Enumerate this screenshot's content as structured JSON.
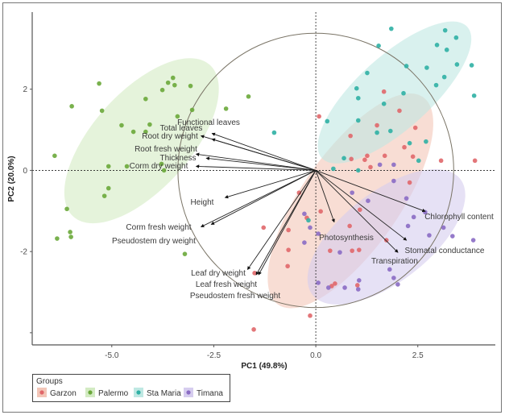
{
  "chart_data": {
    "type": "scatter",
    "subtype": "pca-biplot",
    "xlabel": "PC1 (49.8%)",
    "ylabel": "PC2 (20.0%)",
    "xlim": [
      -6.95,
      4.4
    ],
    "ylim": [
      -4.3,
      3.9
    ],
    "x_ticks": [
      {
        "value": -5.0,
        "label": "-5.0"
      },
      {
        "value": -2.5,
        "label": "-2.5"
      },
      {
        "value": 0.0,
        "label": "0.0"
      },
      {
        "value": 2.5,
        "label": "2.5"
      }
    ],
    "y_ticks": [
      {
        "value": 2,
        "label": "2"
      },
      {
        "value": 0,
        "label": "0"
      },
      {
        "value": -2,
        "label": "-2"
      },
      {
        "value": -4,
        "label": ""
      }
    ],
    "grid": false,
    "reference_lines": "dashed at x=0 and y=0",
    "correlation_circle_radius": 3.38,
    "legend": {
      "title": "Groups",
      "position": "bottom-left"
    },
    "series": [
      {
        "name": "Garzon",
        "color": "#e0676a",
        "fill": "#f3c6b8",
        "ellipse": {
          "cx": 0.85,
          "cy": -0.75,
          "rx": 3.1,
          "ry": 1.2,
          "angle": 55
        },
        "points": [
          [
            0.08,
            1.33
          ],
          [
            1.67,
            1.94
          ],
          [
            2.05,
            1.47
          ],
          [
            1.5,
            1.11
          ],
          [
            0.85,
            0.85
          ],
          [
            2.44,
            1.05
          ],
          [
            2.17,
            0.57
          ],
          [
            0.87,
            0.28
          ],
          [
            1.26,
            0.36
          ],
          [
            1.69,
            0.36
          ],
          [
            1.2,
            0.26
          ],
          [
            1.34,
            0.08
          ],
          [
            2.38,
            0.34
          ],
          [
            3.07,
            0.24
          ],
          [
            3.9,
            0.24
          ],
          [
            2.3,
            -0.3
          ],
          [
            -0.41,
            -0.55
          ],
          [
            0.12,
            -1.01
          ],
          [
            -1.28,
            -1.41
          ],
          [
            -0.67,
            -1.47
          ],
          [
            -0.22,
            -1.17
          ],
          [
            -0.67,
            -1.96
          ],
          [
            -0.69,
            -2.36
          ],
          [
            0.35,
            -1.98
          ],
          [
            0.89,
            -1.98
          ],
          [
            1.06,
            -1.96
          ],
          [
            1.73,
            -1.72
          ],
          [
            1.08,
            -0.97
          ],
          [
            0.83,
            -1.37
          ],
          [
            0.47,
            -2.79
          ],
          [
            0.39,
            -2.85
          ],
          [
            -1.5,
            -2.53
          ],
          [
            -1.52,
            -3.92
          ],
          [
            -0.14,
            -3.58
          ],
          [
            1.02,
            -2.83
          ]
        ]
      },
      {
        "name": "Palermo",
        "color": "#6aa83a",
        "fill": "#d3ebc3",
        "ellipse": {
          "cx": -4.27,
          "cy": 0.73,
          "rx": 2.5,
          "ry": 1.2,
          "angle": 48
        },
        "points": [
          [
            -5.31,
            2.14
          ],
          [
            -5.98,
            1.58
          ],
          [
            -5.24,
            1.47
          ],
          [
            -3.5,
            2.28
          ],
          [
            -3.62,
            2.16
          ],
          [
            -3.46,
            2.1
          ],
          [
            -3.76,
            1.98
          ],
          [
            -3.07,
            2.08
          ],
          [
            -4.17,
            1.76
          ],
          [
            -3.03,
            1.49
          ],
          [
            -4.76,
            1.11
          ],
          [
            -4.07,
            1.13
          ],
          [
            -4.17,
            0.95
          ],
          [
            -4.47,
            0.95
          ],
          [
            -3.39,
            1.33
          ],
          [
            -5.08,
            0.1
          ],
          [
            -4.63,
            0.1
          ],
          [
            -3.78,
            0.16
          ],
          [
            -3.72,
            0.0
          ],
          [
            -6.1,
            -0.95
          ],
          [
            -6.02,
            -1.52
          ],
          [
            -6.0,
            -1.64
          ],
          [
            -6.34,
            -1.68
          ],
          [
            -5.08,
            -0.44
          ],
          [
            -5.18,
            -0.63
          ],
          [
            -3.21,
            -2.06
          ],
          [
            -1.65,
            1.82
          ],
          [
            -2.2,
            1.52
          ],
          [
            -6.4,
            0.36
          ]
        ]
      },
      {
        "name": "Sta Maria",
        "color": "#2fb0a4",
        "fill": "#bfe8e3",
        "ellipse": {
          "cx": 1.93,
          "cy": 1.92,
          "rx": 2.4,
          "ry": 0.9,
          "angle": 42
        },
        "points": [
          [
            1.85,
            3.49
          ],
          [
            3.17,
            3.45
          ],
          [
            3.44,
            3.27
          ],
          [
            1.54,
            3.07
          ],
          [
            2.97,
            3.09
          ],
          [
            3.21,
            2.97
          ],
          [
            2.22,
            2.57
          ],
          [
            2.72,
            2.53
          ],
          [
            3.46,
            2.61
          ],
          [
            3.82,
            2.59
          ],
          [
            3.15,
            2.3
          ],
          [
            2.95,
            2.1
          ],
          [
            1.26,
            2.4
          ],
          [
            1.0,
            2.02
          ],
          [
            1.04,
            1.78
          ],
          [
            2.15,
            1.9
          ],
          [
            1.67,
            1.64
          ],
          [
            0.28,
            1.21
          ],
          [
            3.88,
            1.84
          ],
          [
            -1.02,
            0.93
          ],
          [
            1.04,
            1.23
          ],
          [
            1.5,
            0.93
          ],
          [
            1.83,
            0.97
          ],
          [
            2.3,
            0.67
          ],
          [
            2.7,
            0.71
          ],
          [
            0.69,
            0.3
          ],
          [
            2.52,
            0.24
          ],
          [
            1.04,
            0.0
          ],
          [
            0.43,
            0.04
          ],
          [
            -0.18,
            -1.23
          ]
        ]
      },
      {
        "name": "Timana",
        "color": "#8a6cc4",
        "fill": "#d6cdef",
        "ellipse": {
          "cx": 1.73,
          "cy": -1.64,
          "rx": 2.3,
          "ry": 1.1,
          "angle": 38
        },
        "points": [
          [
            1.91,
            0.14
          ],
          [
            1.57,
            0.14
          ],
          [
            1.91,
            -0.26
          ],
          [
            1.28,
            -0.75
          ],
          [
            2.22,
            -0.69
          ],
          [
            2.4,
            -1.15
          ],
          [
            2.26,
            -1.37
          ],
          [
            2.68,
            -1.03
          ],
          [
            3.13,
            -1.41
          ],
          [
            2.78,
            -1.6
          ],
          [
            3.35,
            -1.62
          ],
          [
            3.86,
            -1.72
          ],
          [
            0.59,
            -2.02
          ],
          [
            -0.28,
            -1.07
          ],
          [
            -0.14,
            -1.41
          ],
          [
            -0.28,
            -1.78
          ],
          [
            1.81,
            -2.44
          ],
          [
            1.91,
            -2.65
          ],
          [
            2.01,
            -2.81
          ],
          [
            0.31,
            -2.89
          ],
          [
            0.71,
            -2.89
          ],
          [
            1.04,
            -2.93
          ],
          [
            1.06,
            -2.71
          ],
          [
            0.06,
            -2.77
          ],
          [
            0.89,
            -0.55
          ],
          [
            0.06,
            -1.56
          ]
        ]
      }
    ],
    "loadings": [
      {
        "name": "Functional leaves",
        "x": -2.54,
        "y": 0.91
      },
      {
        "name": "Total leaves",
        "x": -2.81,
        "y": 0.85
      },
      {
        "name": "Root dry weight",
        "x": -2.54,
        "y": 0.77
      },
      {
        "name": "Root fresh weight",
        "x": -2.93,
        "y": 0.4
      },
      {
        "name": "Thickness",
        "x": -2.68,
        "y": 0.3
      },
      {
        "name": "Corm dry weight",
        "x": -2.93,
        "y": 0.1
      },
      {
        "name": "Height",
        "x": -2.22,
        "y": -0.67
      },
      {
        "name": "Corm fresh weight",
        "x": -2.81,
        "y": -1.39
      },
      {
        "name": "Pseudostem dry weight",
        "x": -2.56,
        "y": -1.33
      },
      {
        "name": "Leaf dry weight",
        "x": -1.67,
        "y": -2.44
      },
      {
        "name": "Leaf fresh weight",
        "x": -1.46,
        "y": -2.57
      },
      {
        "name": "Pseudostem fresh weight",
        "x": -1.4,
        "y": -2.57
      },
      {
        "name": "Photosynthesis",
        "x": 0.45,
        "y": -1.27
      },
      {
        "name": "Chlorophyll content",
        "x": 2.68,
        "y": -1.01
      },
      {
        "name": "Stomatal conductance",
        "x": 2.22,
        "y": -1.72
      },
      {
        "name": "Transpiration",
        "x": 2.01,
        "y": -2.02
      }
    ]
  }
}
